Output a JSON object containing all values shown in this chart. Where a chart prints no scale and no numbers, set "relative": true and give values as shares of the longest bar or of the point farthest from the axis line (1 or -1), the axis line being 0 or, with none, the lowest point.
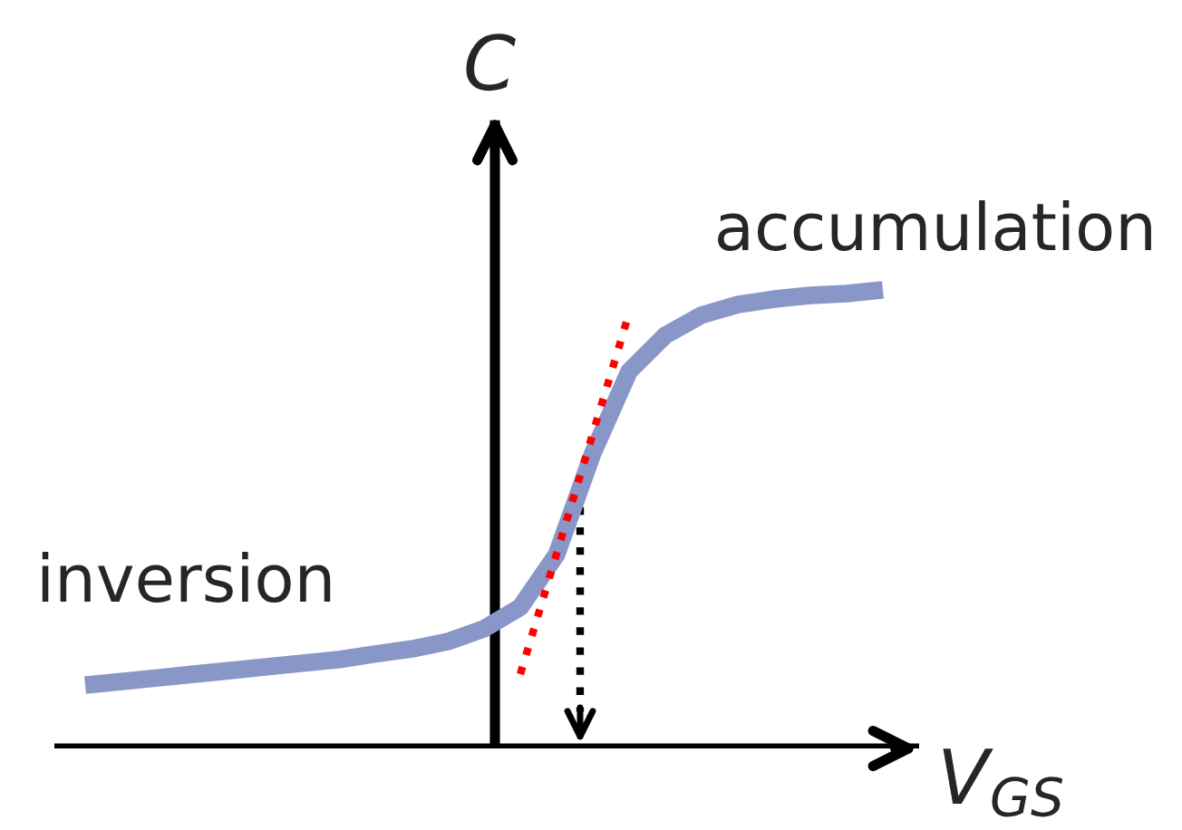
{
  "chart_data": {
    "type": "line",
    "relative": true,
    "xlabel": "V$_{GS}$",
    "ylabel": "C",
    "categories": [
      null,
      null,
      null,
      null,
      null,
      null,
      null,
      null,
      null,
      null,
      null,
      null,
      null,
      null,
      null,
      null,
      null,
      null,
      null,
      null,
      null,
      null,
      null
    ],
    "series": [
      {
        "color": "#8896c8",
        "values": [
          0.138,
          0.146,
          0.154,
          0.162,
          0.17,
          0.178,
          0.186,
          0.194,
          0.206,
          0.217,
          0.233,
          0.261,
          0.308,
          0.423,
          0.644,
          0.822,
          0.901,
          0.945,
          0.968,
          0.98,
          0.988,
          0.992,
          1.0
        ]
      },
      {
        "color": "#ff0000",
        "line_style": "dotted",
        "values": [
          null,
          null,
          null,
          null,
          null,
          null,
          null,
          null,
          null,
          null,
          null,
          null,
          0.162,
          null,
          null,
          0.949,
          null,
          null,
          null,
          null,
          null,
          null,
          null
        ]
      }
    ],
    "annotations": [
      "inversion",
      "accumulation"
    ]
  }
}
